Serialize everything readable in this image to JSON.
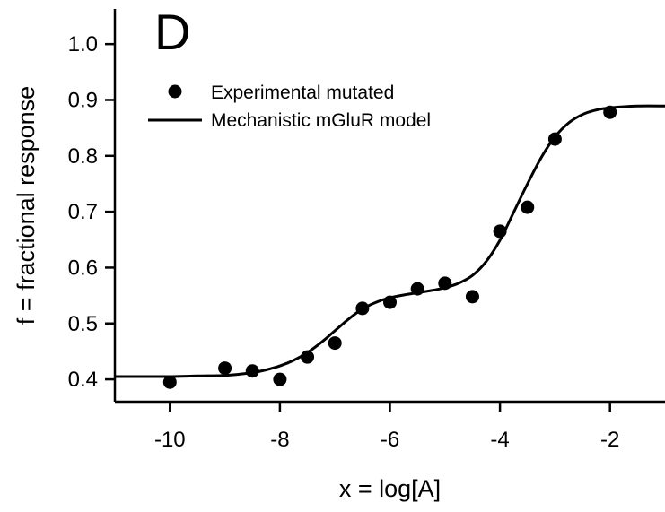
{
  "chart_data": {
    "type": "scatter",
    "panel_label": "D",
    "xlabel": "x = log[A]",
    "ylabel": "f = fractional response",
    "xlim": [
      -11,
      -1
    ],
    "ylim": [
      0.36,
      1.05
    ],
    "x_ticks": [
      -10,
      -8,
      -6,
      -4,
      -2
    ],
    "x_tick_labels": [
      "-10",
      "-8",
      "-6",
      "-4",
      "-2"
    ],
    "y_ticks": [
      0.4,
      0.5,
      0.6,
      0.7,
      0.8,
      0.9,
      1.0
    ],
    "y_tick_labels": [
      "0.4",
      "0.5",
      "0.6",
      "0.7",
      "0.8",
      "0.9",
      "1.0"
    ],
    "grid": false,
    "legend_position": "top-left",
    "series": [
      {
        "name": "Experimental mutated",
        "kind": "scatter",
        "color": "#000000",
        "x": [
          -10,
          -9,
          -8.5,
          -8,
          -7.5,
          -7,
          -6.5,
          -6,
          -5.5,
          -5,
          -4.5,
          -4,
          -3.5,
          -3,
          -2
        ],
        "y": [
          0.395,
          0.42,
          0.415,
          0.4,
          0.44,
          0.465,
          0.527,
          0.538,
          0.562,
          0.572,
          0.548,
          0.665,
          0.708,
          0.83,
          0.878
        ]
      },
      {
        "name": "Mechanistic mGluR model",
        "kind": "line",
        "color": "#000000",
        "x": [
          -11,
          -10.5,
          -10,
          -9.5,
          -9,
          -8.75,
          -8.5,
          -8.25,
          -8,
          -7.75,
          -7.5,
          -7.25,
          -7,
          -6.75,
          -6.5,
          -6.25,
          -6,
          -5.75,
          -5.5,
          -5.25,
          -5,
          -4.75,
          -4.5,
          -4.25,
          -4,
          -3.75,
          -3.5,
          -3.25,
          -3,
          -2.75,
          -2.5,
          -2.25,
          -2,
          -1.5,
          -1
        ],
        "y": [
          0.405,
          0.405,
          0.405,
          0.406,
          0.407,
          0.409,
          0.412,
          0.417,
          0.424,
          0.434,
          0.448,
          0.466,
          0.487,
          0.508,
          0.526,
          0.538,
          0.546,
          0.551,
          0.555,
          0.559,
          0.564,
          0.572,
          0.586,
          0.611,
          0.649,
          0.699,
          0.75,
          0.797,
          0.834,
          0.859,
          0.874,
          0.882,
          0.886,
          0.889,
          0.889
        ]
      }
    ]
  }
}
